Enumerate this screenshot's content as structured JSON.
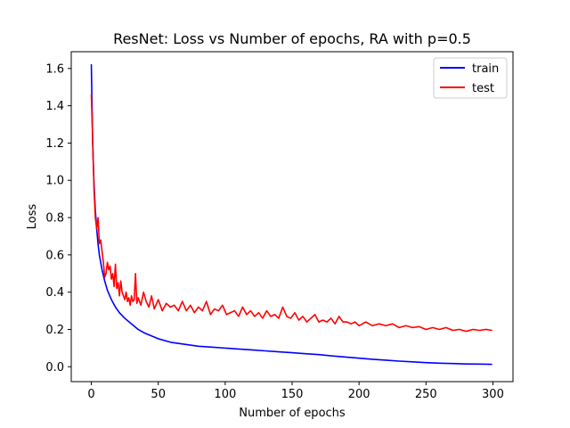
{
  "chart_data": {
    "type": "line",
    "title": "ResNet: Loss vs Number of epochs, RA with p=0.5",
    "xlabel": "Number of epochs",
    "ylabel": "Loss",
    "xlim": [
      -15,
      315
    ],
    "ylim": [
      -0.08,
      1.69
    ],
    "xticks": [
      0,
      50,
      100,
      150,
      200,
      250,
      300
    ],
    "yticks": [
      0.0,
      0.2,
      0.4,
      0.6,
      0.8,
      1.0,
      1.2,
      1.4,
      1.6
    ],
    "xtick_labels": [
      "0",
      "50",
      "100",
      "150",
      "200",
      "250",
      "300"
    ],
    "ytick_labels": [
      "0.0",
      "0.2",
      "0.4",
      "0.6",
      "0.8",
      "1.0",
      "1.2",
      "1.4",
      "1.6"
    ],
    "grid": false,
    "legend_position": "top-right",
    "series": [
      {
        "name": "train",
        "color": "#0000ff",
        "x": [
          0,
          1,
          2,
          3,
          4,
          5,
          6,
          8,
          10,
          12,
          15,
          18,
          21,
          25,
          30,
          35,
          40,
          45,
          50,
          60,
          70,
          80,
          90,
          100,
          110,
          120,
          130,
          140,
          150,
          160,
          170,
          180,
          190,
          200,
          210,
          220,
          230,
          240,
          250,
          260,
          270,
          280,
          290,
          299
        ],
        "y": [
          1.62,
          1.2,
          0.98,
          0.84,
          0.74,
          0.66,
          0.6,
          0.52,
          0.46,
          0.41,
          0.36,
          0.32,
          0.29,
          0.26,
          0.23,
          0.2,
          0.18,
          0.165,
          0.15,
          0.13,
          0.12,
          0.11,
          0.105,
          0.1,
          0.095,
          0.09,
          0.085,
          0.08,
          0.075,
          0.07,
          0.065,
          0.058,
          0.052,
          0.046,
          0.04,
          0.035,
          0.03,
          0.026,
          0.022,
          0.019,
          0.017,
          0.015,
          0.014,
          0.013
        ]
      },
      {
        "name": "test",
        "color": "#ff0000",
        "x": [
          0,
          1,
          2,
          3,
          4,
          5,
          6,
          7,
          8,
          9,
          10,
          11,
          12,
          13,
          14,
          15,
          16,
          17,
          18,
          19,
          20,
          21,
          22,
          23,
          24,
          25,
          26,
          27,
          28,
          29,
          30,
          31,
          32,
          33,
          34,
          35,
          37,
          39,
          41,
          43,
          45,
          47,
          50,
          53,
          56,
          59,
          62,
          65,
          68,
          71,
          74,
          77,
          80,
          83,
          86,
          89,
          92,
          95,
          98,
          101,
          104,
          107,
          110,
          113,
          116,
          119,
          122,
          125,
          128,
          131,
          134,
          137,
          140,
          143,
          146,
          149,
          152,
          155,
          158,
          161,
          164,
          167,
          170,
          173,
          176,
          179,
          182,
          185,
          188,
          191,
          194,
          197,
          200,
          205,
          210,
          215,
          220,
          225,
          230,
          235,
          240,
          245,
          250,
          255,
          260,
          265,
          270,
          275,
          280,
          285,
          290,
          295,
          299
        ],
        "y": [
          1.46,
          1.22,
          0.95,
          0.8,
          0.74,
          0.8,
          0.66,
          0.68,
          0.62,
          0.56,
          0.48,
          0.5,
          0.56,
          0.52,
          0.54,
          0.47,
          0.5,
          0.43,
          0.55,
          0.42,
          0.45,
          0.38,
          0.46,
          0.4,
          0.38,
          0.36,
          0.4,
          0.35,
          0.37,
          0.33,
          0.38,
          0.35,
          0.36,
          0.5,
          0.34,
          0.37,
          0.33,
          0.4,
          0.35,
          0.32,
          0.38,
          0.31,
          0.36,
          0.3,
          0.34,
          0.32,
          0.33,
          0.3,
          0.35,
          0.3,
          0.33,
          0.29,
          0.32,
          0.3,
          0.35,
          0.28,
          0.31,
          0.3,
          0.33,
          0.28,
          0.29,
          0.3,
          0.27,
          0.32,
          0.28,
          0.3,
          0.27,
          0.29,
          0.26,
          0.3,
          0.27,
          0.28,
          0.26,
          0.32,
          0.27,
          0.26,
          0.29,
          0.25,
          0.27,
          0.24,
          0.26,
          0.28,
          0.24,
          0.25,
          0.24,
          0.26,
          0.23,
          0.27,
          0.24,
          0.24,
          0.23,
          0.24,
          0.22,
          0.24,
          0.22,
          0.23,
          0.22,
          0.23,
          0.21,
          0.22,
          0.21,
          0.215,
          0.2,
          0.21,
          0.2,
          0.21,
          0.195,
          0.2,
          0.19,
          0.2,
          0.195,
          0.2,
          0.195
        ]
      }
    ]
  }
}
